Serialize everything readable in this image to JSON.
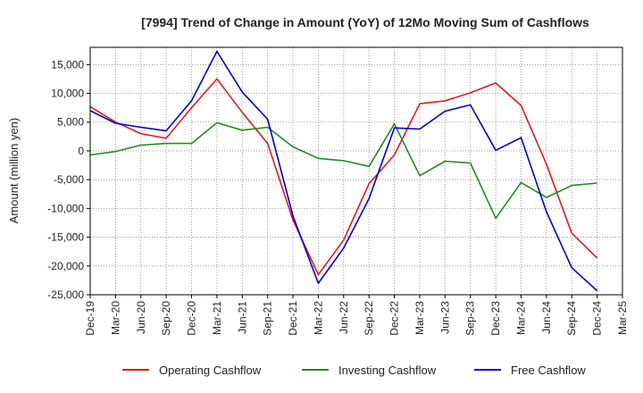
{
  "chart_data": {
    "type": "line",
    "title": "[7994]  Trend of Change in Amount (YoY) of 12Mo Moving Sum of Cashflows",
    "xlabel": "",
    "ylabel": "Amount (million yen)",
    "ylim": [
      -25000,
      18000
    ],
    "yticks": [
      15000,
      10000,
      5000,
      0,
      -5000,
      -10000,
      -15000,
      -20000,
      -25000
    ],
    "ytick_labels": [
      "15,000",
      "10,000",
      "5,000",
      "0",
      "-5,000",
      "-10,000",
      "-15,000",
      "-20,000",
      "-25,000"
    ],
    "categories": [
      "Dec-19",
      "Mar-20",
      "Jun-20",
      "Sep-20",
      "Dec-20",
      "Mar-21",
      "Jun-21",
      "Sep-21",
      "Dec-21",
      "Mar-22",
      "Jun-22",
      "Sep-22",
      "Dec-22",
      "Mar-23",
      "Jun-23",
      "Sep-23",
      "Dec-23",
      "Mar-24",
      "Jun-24",
      "Sep-24",
      "Dec-24",
      "Mar-25"
    ],
    "grid": true,
    "legend_position": "bottom",
    "series": [
      {
        "name": "Operating Cashflow",
        "color": "#e31a1c",
        "values": [
          7700,
          5000,
          3000,
          2200,
          7500,
          12500,
          6700,
          1300,
          -12000,
          -21500,
          -15500,
          -5700,
          -700,
          8200,
          8700,
          10100,
          11800,
          7900,
          -2300,
          -14300,
          -18600,
          null
        ]
      },
      {
        "name": "Investing Cashflow",
        "color": "#228b22",
        "values": [
          -700,
          -100,
          1000,
          1300,
          1300,
          4900,
          3600,
          4100,
          700,
          -1300,
          -1700,
          -2700,
          4700,
          -4300,
          -1800,
          -2100,
          -11700,
          -5500,
          -8100,
          -6000,
          -5600,
          null
        ]
      },
      {
        "name": "Free Cashflow",
        "color": "#0000cc",
        "values": [
          7000,
          4800,
          4100,
          3500,
          8700,
          17300,
          10200,
          5500,
          -11300,
          -23000,
          -16900,
          -8300,
          4000,
          3800,
          6900,
          8000,
          100,
          2300,
          -10600,
          -20300,
          -24300,
          null
        ]
      }
    ]
  }
}
